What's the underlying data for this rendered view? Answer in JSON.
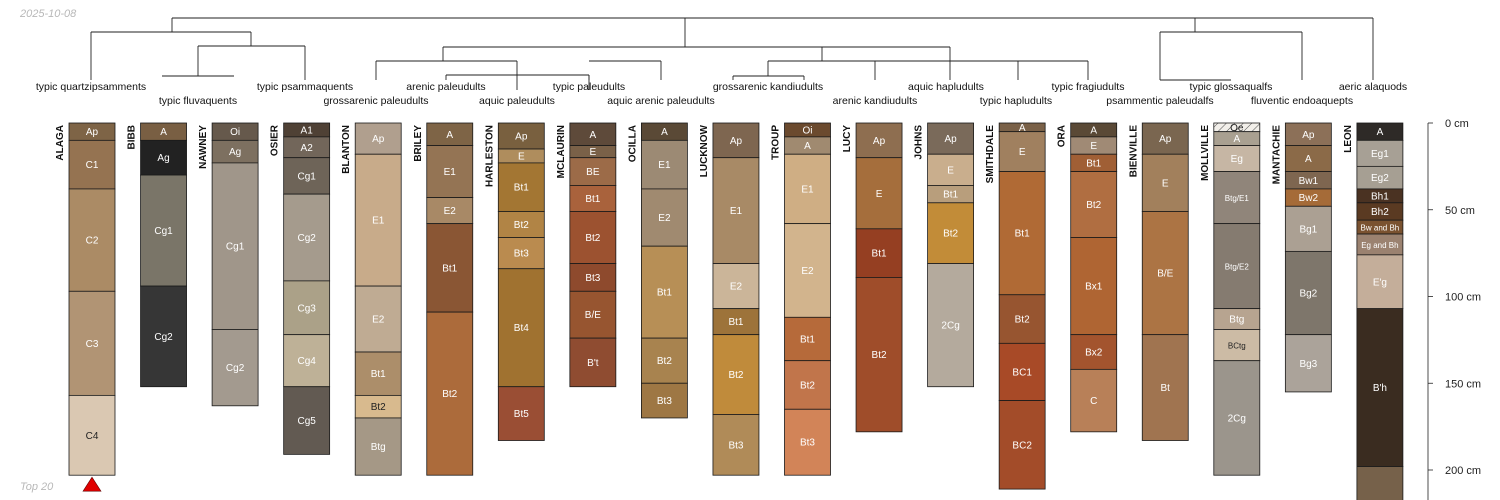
{
  "meta": {
    "date": "2025-10-08",
    "footnote": "Top 20"
  },
  "depth_axis": {
    "unit": "cm",
    "max_depth_cm": 220,
    "ticks": [
      {
        "value": 0,
        "label": "0 cm"
      },
      {
        "value": 50,
        "label": "50 cm"
      },
      {
        "value": 100,
        "label": "100 cm"
      },
      {
        "value": 150,
        "label": "150 cm"
      },
      {
        "value": 200,
        "label": "200 cm"
      }
    ]
  },
  "taxa": [
    "typic quartzipsamments",
    "typic fluvaquents",
    "typic psammaquents",
    "grossarenic paleudults",
    "arenic paleudults",
    "aquic paleudults",
    "typic paleudults",
    "aquic arenic paleudults",
    "grossarenic kandiudults",
    "arenic kandiudults",
    "aquic hapludults",
    "typic hapludults",
    "typic fragiudults",
    "psammentic paleudalfs",
    "typic glossaqualfs",
    "fluventic endoaquepts",
    "aeric alaquods"
  ],
  "profiles": [
    {
      "name": "ALAGA",
      "marker": "red-triangle",
      "horizons": [
        {
          "name": "Ap",
          "top": 0,
          "bottom": 10,
          "color": "#7E6446"
        },
        {
          "name": "C1",
          "top": 10,
          "bottom": 38,
          "color": "#957351"
        },
        {
          "name": "C2",
          "top": 38,
          "bottom": 97,
          "color": "#AB8B65"
        },
        {
          "name": "C3",
          "top": 97,
          "bottom": 157,
          "color": "#B19474"
        },
        {
          "name": "C4",
          "top": 157,
          "bottom": 203,
          "color": "#DAC8B2"
        }
      ]
    },
    {
      "name": "BIBB",
      "horizons": [
        {
          "name": "A",
          "top": 0,
          "bottom": 10,
          "color": "#795F43"
        },
        {
          "name": "Ag",
          "top": 10,
          "bottom": 30,
          "color": "#222222"
        },
        {
          "name": "Cg1",
          "top": 30,
          "bottom": 94,
          "color": "#7A7568"
        },
        {
          "name": "Cg2",
          "top": 94,
          "bottom": 152,
          "color": "#363636"
        }
      ]
    },
    {
      "name": "NAWNEY",
      "horizons": [
        {
          "name": "Oi",
          "top": 0,
          "bottom": 10,
          "color": "#66594C"
        },
        {
          "name": "Ag",
          "top": 10,
          "bottom": 23,
          "color": "#7D7060"
        },
        {
          "name": "Cg1",
          "top": 23,
          "bottom": 119,
          "color": "#A0968A"
        },
        {
          "name": "Cg2",
          "top": 119,
          "bottom": 163,
          "color": "#A39A8F"
        }
      ]
    },
    {
      "name": "OSIER",
      "horizons": [
        {
          "name": "A1",
          "top": 0,
          "bottom": 8,
          "color": "#4F4135"
        },
        {
          "name": "A2",
          "top": 8,
          "bottom": 20,
          "color": "#72665A"
        },
        {
          "name": "Cg1",
          "top": 20,
          "bottom": 41,
          "color": "#6E6458"
        },
        {
          "name": "Cg2",
          "top": 41,
          "bottom": 91,
          "color": "#A59B8D"
        },
        {
          "name": "Cg3",
          "top": 91,
          "bottom": 122,
          "color": "#ABA188"
        },
        {
          "name": "Cg4",
          "top": 122,
          "bottom": 152,
          "color": "#BEB197"
        },
        {
          "name": "Cg5",
          "top": 152,
          "bottom": 191,
          "color": "#625A52"
        }
      ]
    },
    {
      "name": "BLANTON",
      "horizons": [
        {
          "name": "Ap",
          "top": 0,
          "bottom": 18,
          "color": "#B09F8E"
        },
        {
          "name": "E1",
          "top": 18,
          "bottom": 94,
          "color": "#C8AB8A"
        },
        {
          "name": "E2",
          "top": 94,
          "bottom": 132,
          "color": "#BFAB93"
        },
        {
          "name": "Bt1",
          "top": 132,
          "bottom": 157,
          "color": "#AC8E6A"
        },
        {
          "name": "Bt2",
          "top": 157,
          "bottom": 170,
          "color": "#D8BA8E"
        },
        {
          "name": "Btg",
          "top": 170,
          "bottom": 203,
          "color": "#A59886"
        }
      ]
    },
    {
      "name": "BRILEY",
      "horizons": [
        {
          "name": "A",
          "top": 0,
          "bottom": 13,
          "color": "#7E6446"
        },
        {
          "name": "E1",
          "top": 13,
          "bottom": 43,
          "color": "#947454"
        },
        {
          "name": "E2",
          "top": 43,
          "bottom": 58,
          "color": "#A88966"
        },
        {
          "name": "Bt1",
          "top": 58,
          "bottom": 109,
          "color": "#8A5634"
        },
        {
          "name": "Bt2",
          "top": 109,
          "bottom": 203,
          "color": "#AC6B3B"
        }
      ]
    },
    {
      "name": "HARLESTON",
      "horizons": [
        {
          "name": "Ap",
          "top": 0,
          "bottom": 15,
          "color": "#79603F"
        },
        {
          "name": "E",
          "top": 15,
          "bottom": 23,
          "color": "#AF8D5D"
        },
        {
          "name": "Bt1",
          "top": 23,
          "bottom": 51,
          "color": "#A37633"
        },
        {
          "name": "Bt2",
          "top": 51,
          "bottom": 66,
          "color": "#B18445"
        },
        {
          "name": "Bt3",
          "top": 66,
          "bottom": 84,
          "color": "#BA8B4F"
        },
        {
          "name": "Bt4",
          "top": 84,
          "bottom": 152,
          "color": "#A07230"
        },
        {
          "name": "Bt5",
          "top": 152,
          "bottom": 183,
          "color": "#9A4E34"
        }
      ]
    },
    {
      "name": "MCLAURIN",
      "horizons": [
        {
          "name": "A",
          "top": 0,
          "bottom": 13,
          "color": "#5E4A3A"
        },
        {
          "name": "E",
          "top": 13,
          "bottom": 20,
          "color": "#7A6148"
        },
        {
          "name": "BE",
          "top": 20,
          "bottom": 36,
          "color": "#9C6B48"
        },
        {
          "name": "Bt1",
          "top": 36,
          "bottom": 51,
          "color": "#A9623C"
        },
        {
          "name": "Bt2",
          "top": 51,
          "bottom": 81,
          "color": "#9C5230"
        },
        {
          "name": "Bt3",
          "top": 81,
          "bottom": 97,
          "color": "#8E4A2D"
        },
        {
          "name": "B/E",
          "top": 97,
          "bottom": 124,
          "color": "#975530"
        },
        {
          "name": "B't",
          "top": 124,
          "bottom": 152,
          "color": "#8F4C31"
        }
      ]
    },
    {
      "name": "OCILLA",
      "horizons": [
        {
          "name": "A",
          "top": 0,
          "bottom": 10,
          "color": "#5A4936"
        },
        {
          "name": "E1",
          "top": 10,
          "bottom": 38,
          "color": "#9C8A74"
        },
        {
          "name": "E2",
          "top": 38,
          "bottom": 71,
          "color": "#A08A70"
        },
        {
          "name": "Bt1",
          "top": 71,
          "bottom": 124,
          "color": "#B78F56"
        },
        {
          "name": "Bt2",
          "top": 124,
          "bottom": 150,
          "color": "#A8834F"
        },
        {
          "name": "Bt3",
          "top": 150,
          "bottom": 170,
          "color": "#9E7744"
        }
      ]
    },
    {
      "name": "LUCKNOW",
      "horizons": [
        {
          "name": "Ap",
          "top": 0,
          "bottom": 20,
          "color": "#7E6650"
        },
        {
          "name": "E1",
          "top": 20,
          "bottom": 81,
          "color": "#A88A66"
        },
        {
          "name": "E2",
          "top": 81,
          "bottom": 107,
          "color": "#CBB599"
        },
        {
          "name": "Bt1",
          "top": 107,
          "bottom": 122,
          "color": "#9D733A"
        },
        {
          "name": "Bt2",
          "top": 122,
          "bottom": 168,
          "color": "#C08B3B"
        },
        {
          "name": "Bt3",
          "top": 168,
          "bottom": 203,
          "color": "#B08B58"
        }
      ]
    },
    {
      "name": "TROUP",
      "horizons": [
        {
          "name": "Oi",
          "top": 0,
          "bottom": 8,
          "color": "#6B4A2E"
        },
        {
          "name": "A",
          "top": 8,
          "bottom": 18,
          "color": "#A08A70"
        },
        {
          "name": "E1",
          "top": 18,
          "bottom": 58,
          "color": "#CFAE84"
        },
        {
          "name": "E2",
          "top": 58,
          "bottom": 112,
          "color": "#D2B48D"
        },
        {
          "name": "Bt1",
          "top": 112,
          "bottom": 137,
          "color": "#B66A3A"
        },
        {
          "name": "Bt2",
          "top": 137,
          "bottom": 165,
          "color": "#C1754B"
        },
        {
          "name": "Bt3",
          "top": 165,
          "bottom": 203,
          "color": "#D28458"
        }
      ]
    },
    {
      "name": "LUCY",
      "horizons": [
        {
          "name": "Ap",
          "top": 0,
          "bottom": 20,
          "color": "#8E6E50"
        },
        {
          "name": "E",
          "top": 20,
          "bottom": 61,
          "color": "#A56E3C"
        },
        {
          "name": "Bt1",
          "top": 61,
          "bottom": 89,
          "color": "#953F22"
        },
        {
          "name": "Bt2",
          "top": 89,
          "bottom": 178,
          "color": "#9F4D2A"
        }
      ]
    },
    {
      "name": "JOHNS",
      "horizons": [
        {
          "name": "Ap",
          "top": 0,
          "bottom": 18,
          "color": "#7A6A5A"
        },
        {
          "name": "E",
          "top": 18,
          "bottom": 36,
          "color": "#C9AE8D"
        },
        {
          "name": "Bt1",
          "top": 36,
          "bottom": 46,
          "color": "#B89E7C"
        },
        {
          "name": "Bt2",
          "top": 46,
          "bottom": 81,
          "color": "#C28C38"
        },
        {
          "name": "2Cg",
          "top": 81,
          "bottom": 152,
          "color": "#B4AA9D"
        }
      ]
    },
    {
      "name": "SMITHDALE",
      "horizons": [
        {
          "name": "A",
          "top": 0,
          "bottom": 5,
          "color": "#7A6148"
        },
        {
          "name": "E",
          "top": 5,
          "bottom": 28,
          "color": "#A0805F"
        },
        {
          "name": "Bt1",
          "top": 28,
          "bottom": 99,
          "color": "#B06A35"
        },
        {
          "name": "Bt2",
          "top": 99,
          "bottom": 127,
          "color": "#975530"
        },
        {
          "name": "BC1",
          "top": 127,
          "bottom": 160,
          "color": "#A84A27"
        },
        {
          "name": "BC2",
          "top": 160,
          "bottom": 211,
          "color": "#A34C29"
        }
      ]
    },
    {
      "name": "ORA",
      "horizons": [
        {
          "name": "A",
          "top": 0,
          "bottom": 8,
          "color": "#5A4936"
        },
        {
          "name": "E",
          "top": 8,
          "bottom": 18,
          "color": "#A08A75"
        },
        {
          "name": "Bt1",
          "top": 18,
          "bottom": 28,
          "color": "#A05F35"
        },
        {
          "name": "Bt2",
          "top": 28,
          "bottom": 66,
          "color": "#B06E41"
        },
        {
          "name": "Bx1",
          "top": 66,
          "bottom": 122,
          "color": "#AF6533"
        },
        {
          "name": "Bx2",
          "top": 122,
          "bottom": 142,
          "color": "#A3542E"
        },
        {
          "name": "C",
          "top": 142,
          "bottom": 178,
          "color": "#B88058"
        }
      ]
    },
    {
      "name": "BIENVILLE",
      "horizons": [
        {
          "name": "Ap",
          "top": 0,
          "bottom": 18,
          "color": "#7A6650"
        },
        {
          "name": "E",
          "top": 18,
          "bottom": 51,
          "color": "#A2805C"
        },
        {
          "name": "B/E",
          "top": 51,
          "bottom": 122,
          "color": "#AC7444"
        },
        {
          "name": "Bt",
          "top": 122,
          "bottom": 183,
          "color": "#A07450"
        }
      ]
    },
    {
      "name": "MOLLVILLE",
      "horizons": [
        {
          "name": "Oe",
          "top": 0,
          "bottom": 5,
          "color": "#F2EFEA",
          "hatched": true
        },
        {
          "name": "A",
          "top": 5,
          "bottom": 13,
          "color": "#A9A091"
        },
        {
          "name": "Eg",
          "top": 13,
          "bottom": 28,
          "color": "#C6B6A4"
        },
        {
          "name": "Btg/E1",
          "top": 28,
          "bottom": 58,
          "color": "#90857A",
          "small": true
        },
        {
          "name": "Btg/E2",
          "top": 58,
          "bottom": 107,
          "color": "#857B70",
          "small": true
        },
        {
          "name": "Btg",
          "top": 107,
          "bottom": 119,
          "color": "#B7A490"
        },
        {
          "name": "BCtg",
          "top": 119,
          "bottom": 137,
          "color": "#CCBBA5",
          "small": true
        },
        {
          "name": "2Cg",
          "top": 137,
          "bottom": 203,
          "color": "#9B958C"
        }
      ]
    },
    {
      "name": "MANTACHIE",
      "horizons": [
        {
          "name": "Ap",
          "top": 0,
          "bottom": 13,
          "color": "#8C7058"
        },
        {
          "name": "A",
          "top": 13,
          "bottom": 28,
          "color": "#8B6A48"
        },
        {
          "name": "Bw1",
          "top": 28,
          "bottom": 38,
          "color": "#7E6650"
        },
        {
          "name": "Bw2",
          "top": 38,
          "bottom": 48,
          "color": "#A56B38"
        },
        {
          "name": "Bg1",
          "top": 48,
          "bottom": 74,
          "color": "#ABA093"
        },
        {
          "name": "Bg2",
          "top": 74,
          "bottom": 122,
          "color": "#7E766B"
        },
        {
          "name": "Bg3",
          "top": 122,
          "bottom": 155,
          "color": "#ABA39A"
        }
      ]
    },
    {
      "name": "LEON",
      "horizons": [
        {
          "name": "A",
          "top": 0,
          "bottom": 10,
          "color": "#2E2A27"
        },
        {
          "name": "Eg1",
          "top": 10,
          "bottom": 25,
          "color": "#A7A095"
        },
        {
          "name": "Eg2",
          "top": 25,
          "bottom": 38,
          "color": "#A69F93"
        },
        {
          "name": "Bh1",
          "top": 38,
          "bottom": 46,
          "color": "#4A3222"
        },
        {
          "name": "Bh2",
          "top": 46,
          "bottom": 56,
          "color": "#5A3A22"
        },
        {
          "name": "Bw and Bh",
          "top": 56,
          "bottom": 64,
          "color": "#7A5230",
          "small": true
        },
        {
          "name": "Eg and Bh",
          "top": 64,
          "bottom": 76,
          "color": "#9B8270",
          "small": true
        },
        {
          "name": "E'g",
          "top": 76,
          "bottom": 107,
          "color": "#C4AE9A"
        },
        {
          "name": "B'h",
          "top": 107,
          "bottom": 198,
          "color": "#3A2C20"
        },
        {
          "name": "",
          "top": 198,
          "bottom": 220,
          "color": "#76614A"
        }
      ]
    }
  ]
}
